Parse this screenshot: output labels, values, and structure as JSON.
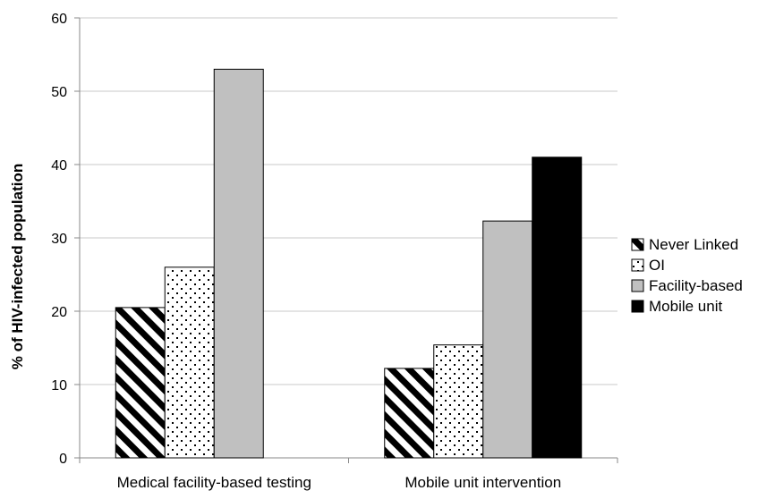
{
  "chart_data": {
    "type": "bar",
    "title": "",
    "xlabel": "",
    "ylabel": "% of HIV-infected population",
    "ylim": [
      0,
      60
    ],
    "yticks": [
      "0",
      "10",
      "20",
      "30",
      "40",
      "50",
      "60"
    ],
    "grid": true,
    "legend_position": "right",
    "categories": [
      "Medical facility-based testing",
      "Mobile unit intervention"
    ],
    "series": [
      {
        "name": "Never Linked",
        "pattern": "diagonal-stripes",
        "color": "#000000",
        "values": [
          20.5,
          12.2
        ]
      },
      {
        "name": "OI",
        "pattern": "dots",
        "color": "#000000",
        "values": [
          26.0,
          15.4
        ]
      },
      {
        "name": "Facility-based",
        "pattern": "solid",
        "color": "#c0c0c0",
        "values": [
          53.0,
          32.3
        ]
      },
      {
        "name": "Mobile unit",
        "pattern": "solid",
        "color": "#000000",
        "values": [
          null,
          41.0
        ]
      }
    ]
  }
}
